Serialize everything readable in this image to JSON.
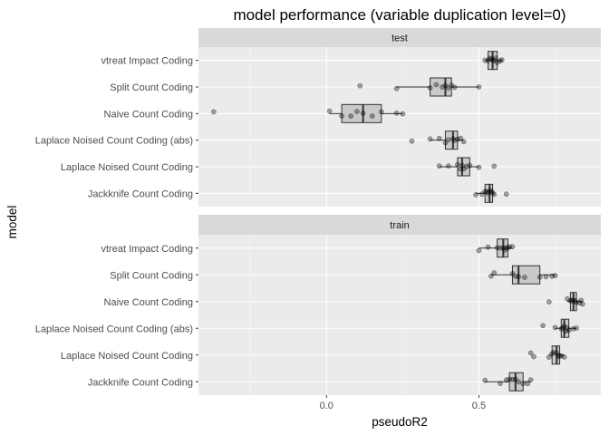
{
  "chart_data": {
    "type": "boxplot",
    "title": "model performance (variable duplication level=0)",
    "xlabel": "pseudoR2",
    "ylabel": "model",
    "xlim": [
      -0.42,
      0.9
    ],
    "x_ticks": [
      0.0,
      0.5
    ],
    "x_tick_labels": [
      "0.0",
      "0.5"
    ],
    "categories": [
      "vtreat Impact Coding",
      "Split Count Coding",
      "Naive Count Coding",
      "Laplace Noised Count Coding (abs)",
      "Laplace Noised Count Coding",
      "Jackknife Count Coding"
    ],
    "panels": [
      {
        "name": "test",
        "boxes": [
          {
            "category": "vtreat Impact Coding",
            "min": 0.52,
            "q1": 0.53,
            "median": 0.545,
            "q3": 0.56,
            "max": 0.575,
            "points": [
              0.52,
              0.53,
              0.535,
              0.54,
              0.545,
              0.55,
              0.555,
              0.56,
              0.57,
              0.575
            ]
          },
          {
            "category": "Split Count Coding",
            "min": 0.23,
            "q1": 0.34,
            "median": 0.39,
            "q3": 0.41,
            "max": 0.5,
            "points": [
              0.11,
              0.23,
              0.34,
              0.36,
              0.38,
              0.39,
              0.4,
              0.41,
              0.42,
              0.5
            ]
          },
          {
            "category": "Naive Count Coding",
            "min": 0.01,
            "q1": 0.05,
            "median": 0.12,
            "q3": 0.18,
            "max": 0.25,
            "points": [
              -0.37,
              0.01,
              0.05,
              0.08,
              0.1,
              0.12,
              0.15,
              0.18,
              0.23,
              0.25
            ]
          },
          {
            "category": "Laplace Noised Count Coding (abs)",
            "min": 0.34,
            "q1": 0.39,
            "median": 0.415,
            "q3": 0.43,
            "max": 0.45,
            "points": [
              0.28,
              0.34,
              0.37,
              0.39,
              0.4,
              0.415,
              0.42,
              0.43,
              0.44,
              0.45
            ]
          },
          {
            "category": "Laplace Noised Count Coding",
            "min": 0.37,
            "q1": 0.43,
            "median": 0.445,
            "q3": 0.47,
            "max": 0.5,
            "points": [
              0.37,
              0.4,
              0.43,
              0.44,
              0.445,
              0.45,
              0.46,
              0.47,
              0.5,
              0.55
            ]
          },
          {
            "category": "Jackknife Count Coding",
            "min": 0.49,
            "q1": 0.52,
            "median": 0.535,
            "q3": 0.545,
            "max": 0.55,
            "points": [
              0.49,
              0.51,
              0.52,
              0.525,
              0.53,
              0.535,
              0.54,
              0.545,
              0.55,
              0.59
            ]
          }
        ]
      },
      {
        "name": "train",
        "boxes": [
          {
            "category": "vtreat Impact Coding",
            "min": 0.5,
            "q1": 0.56,
            "median": 0.58,
            "q3": 0.595,
            "max": 0.61,
            "points": [
              0.5,
              0.53,
              0.56,
              0.57,
              0.58,
              0.585,
              0.59,
              0.595,
              0.6,
              0.61
            ]
          },
          {
            "category": "Split Count Coding",
            "min": 0.54,
            "q1": 0.61,
            "median": 0.63,
            "q3": 0.7,
            "max": 0.75,
            "points": [
              0.54,
              0.55,
              0.61,
              0.62,
              0.63,
              0.65,
              0.7,
              0.72,
              0.74,
              0.75
            ]
          },
          {
            "category": "Naive Count Coding",
            "min": 0.79,
            "q1": 0.8,
            "median": 0.81,
            "q3": 0.82,
            "max": 0.84,
            "points": [
              0.73,
              0.79,
              0.8,
              0.805,
              0.81,
              0.815,
              0.82,
              0.83,
              0.835,
              0.84
            ]
          },
          {
            "category": "Laplace Noised Count Coding (abs)",
            "min": 0.75,
            "q1": 0.77,
            "median": 0.78,
            "q3": 0.795,
            "max": 0.82,
            "points": [
              0.71,
              0.75,
              0.77,
              0.775,
              0.78,
              0.785,
              0.79,
              0.795,
              0.81,
              0.82
            ]
          },
          {
            "category": "Laplace Noised Count Coding",
            "min": 0.73,
            "q1": 0.74,
            "median": 0.755,
            "q3": 0.765,
            "max": 0.78,
            "points": [
              0.67,
              0.68,
              0.73,
              0.74,
              0.745,
              0.755,
              0.76,
              0.765,
              0.77,
              0.78
            ]
          },
          {
            "category": "Jackknife Count Coding",
            "min": 0.52,
            "q1": 0.6,
            "median": 0.62,
            "q3": 0.645,
            "max": 0.67,
            "points": [
              0.52,
              0.57,
              0.59,
              0.6,
              0.61,
              0.62,
              0.63,
              0.645,
              0.66,
              0.67
            ]
          }
        ]
      }
    ],
    "colors": {
      "panel_background": "#ebebeb",
      "strip_background": "#d9d9d9",
      "grid": "#ffffff",
      "box_fill": "#c9c9c9",
      "box_stroke": "#333333",
      "point": "#000000",
      "text": "#4d4d4d",
      "title": "#000000"
    },
    "grid": true,
    "legend": "none"
  }
}
